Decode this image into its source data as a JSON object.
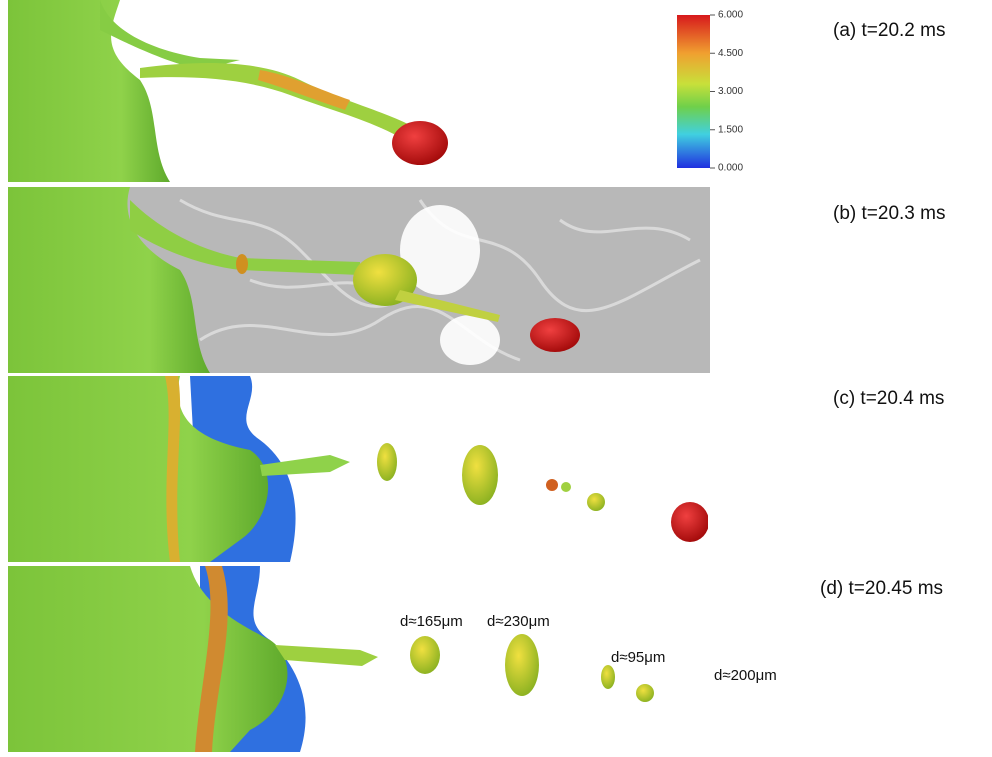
{
  "panels": [
    {
      "label": "(a) t=20.2 ms"
    },
    {
      "label": "(b) t=20.3 ms"
    },
    {
      "label": "(c) t=20.4 ms"
    },
    {
      "label": "(d) t=20.45 ms"
    }
  ],
  "colorbar": {
    "lim": [
      0,
      6
    ],
    "ticks": [
      {
        "value": 6,
        "label": "6.000"
      },
      {
        "value": 4.5,
        "label": "4.500"
      },
      {
        "value": 3,
        "label": "3.000"
      },
      {
        "value": 1.5,
        "label": "1.500"
      },
      {
        "value": 0,
        "label": "0.000"
      }
    ]
  },
  "annotations": [
    {
      "text": "d≈165μm"
    },
    {
      "text": "d≈230μm"
    },
    {
      "text": "d≈95μm"
    },
    {
      "text": "d≈200μm"
    }
  ]
}
